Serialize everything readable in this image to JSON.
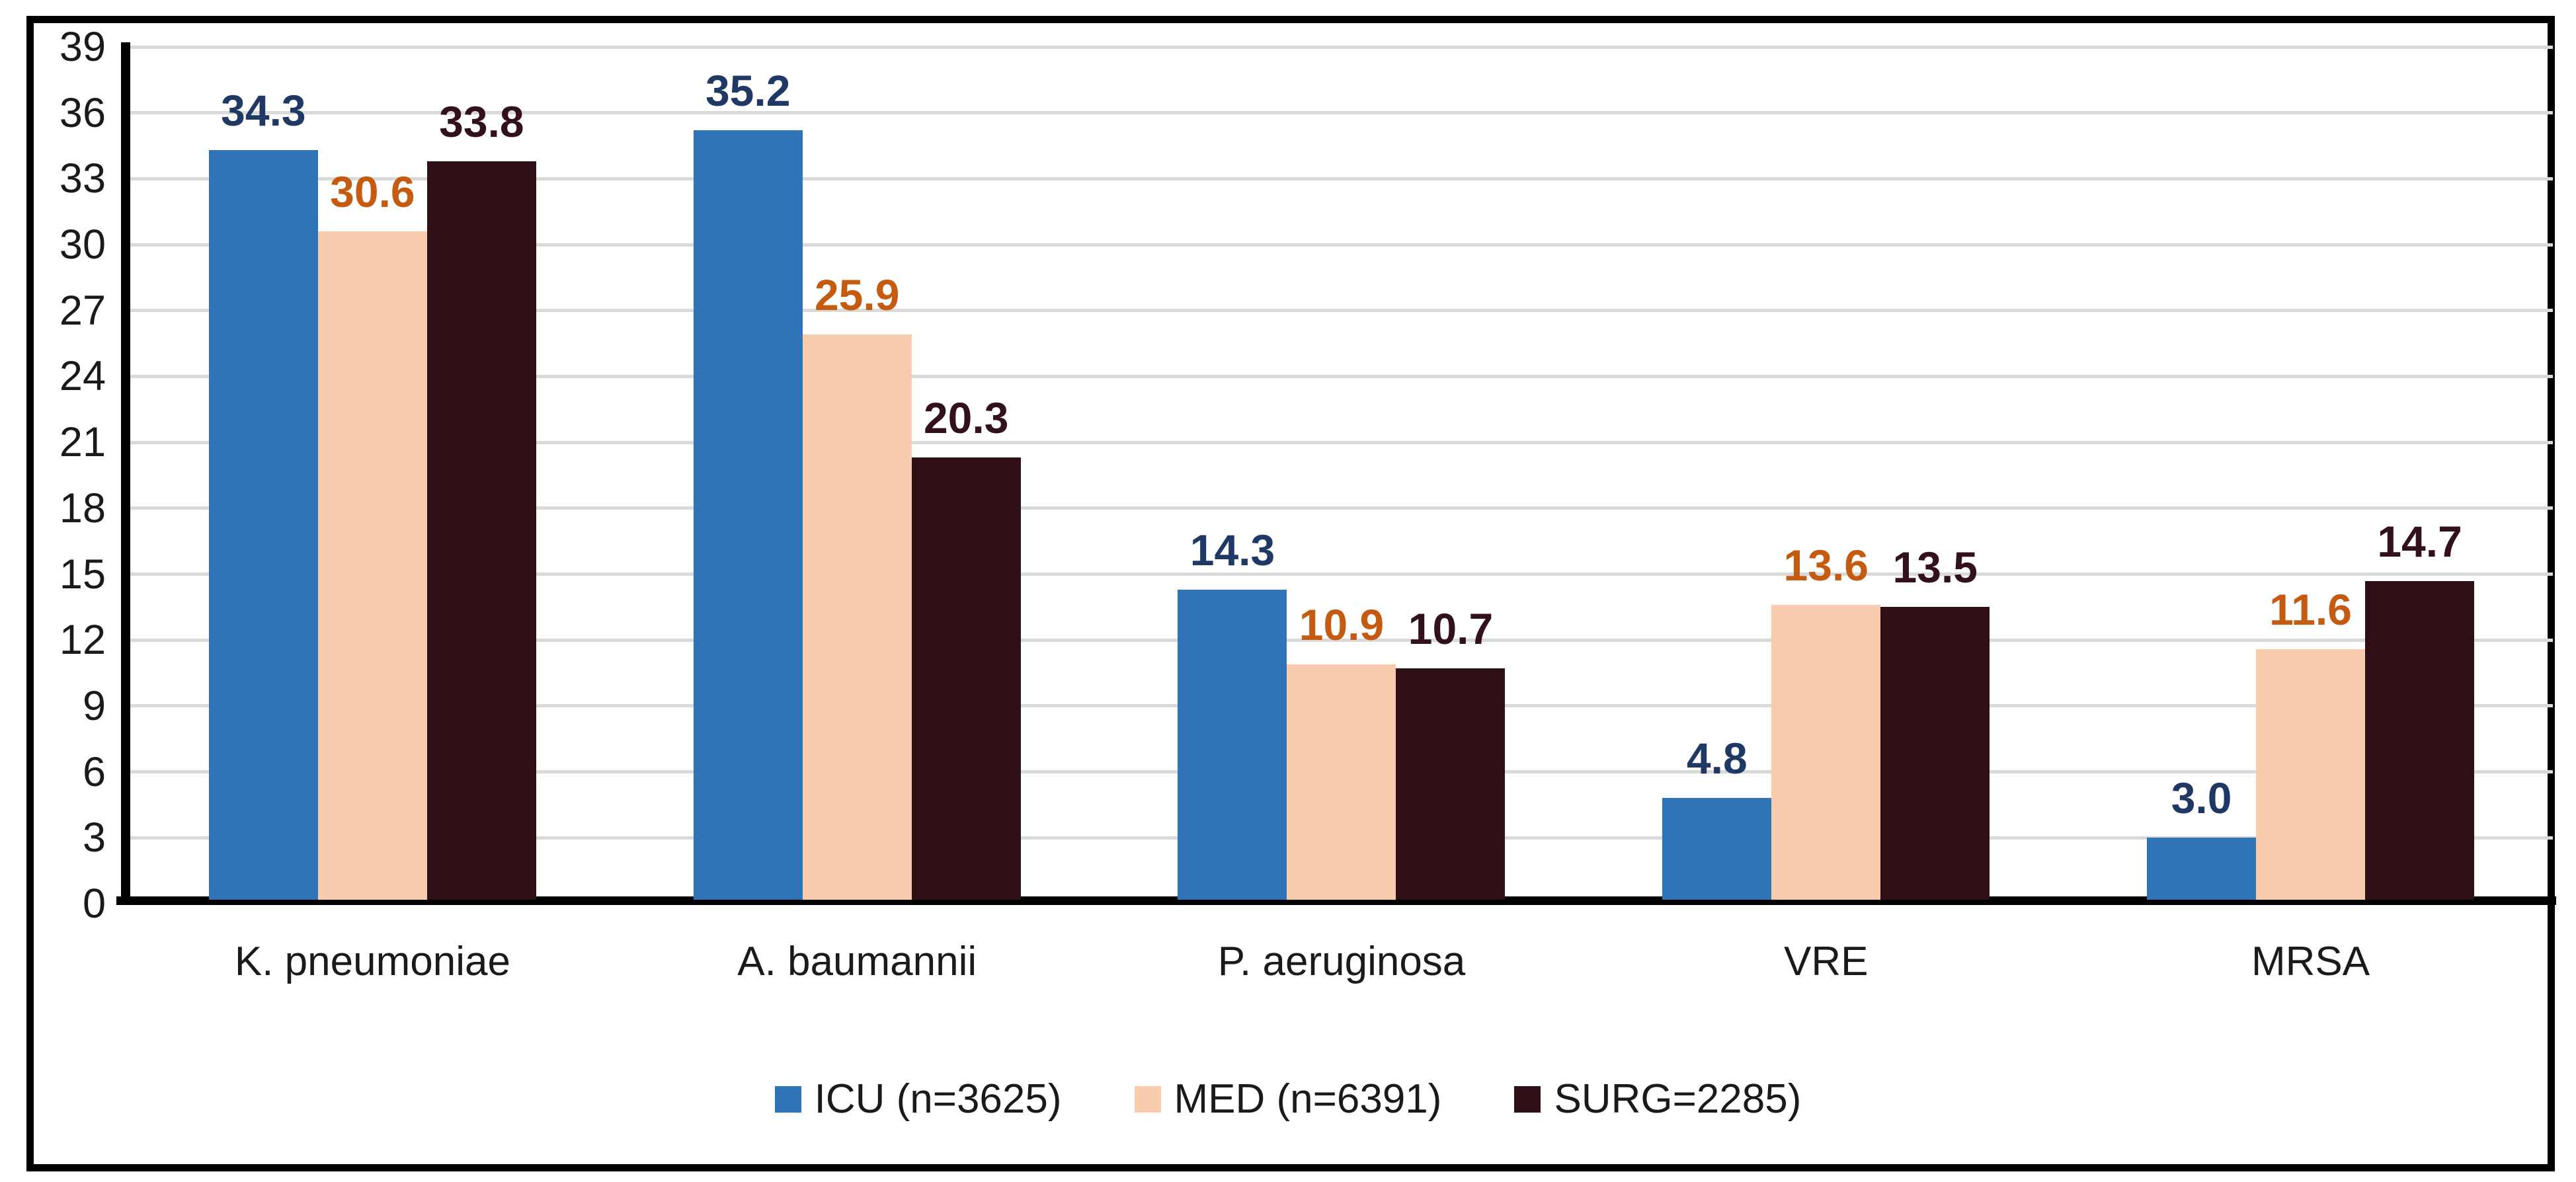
{
  "chart_data": {
    "type": "bar",
    "title": "",
    "categories": [
      "K. pneumoniae",
      "A. baumannii",
      "P. aeruginosa",
      "VRE",
      "MRSA"
    ],
    "series": [
      {
        "name": "ICU (n=3625)",
        "color": "#2E74B6",
        "label_color": "#1F3864",
        "values": [
          34.3,
          35.2,
          14.3,
          4.8,
          3.0
        ]
      },
      {
        "name": "MED (n=6391)",
        "color": "#F8CCAC",
        "label_color": "#C55A11",
        "values": [
          30.6,
          25.9,
          10.9,
          13.6,
          11.6
        ]
      },
      {
        "name": "SURG=2285)",
        "color": "#2E0F15",
        "label_color": "#33101D",
        "values": [
          33.8,
          20.3,
          10.7,
          13.5,
          14.7
        ]
      }
    ],
    "y_axis": {
      "min": 0,
      "max": 39,
      "step": 3,
      "ticks": [
        39,
        36,
        33,
        30,
        27,
        24,
        21,
        18,
        15,
        12,
        9,
        6,
        3,
        0
      ]
    },
    "grid": {
      "show": true,
      "color": "#D9D9D9"
    },
    "axis_color": "#000000",
    "legend_position": "bottom",
    "value_labels": {
      "decimals": 1,
      "bold": true
    }
  }
}
